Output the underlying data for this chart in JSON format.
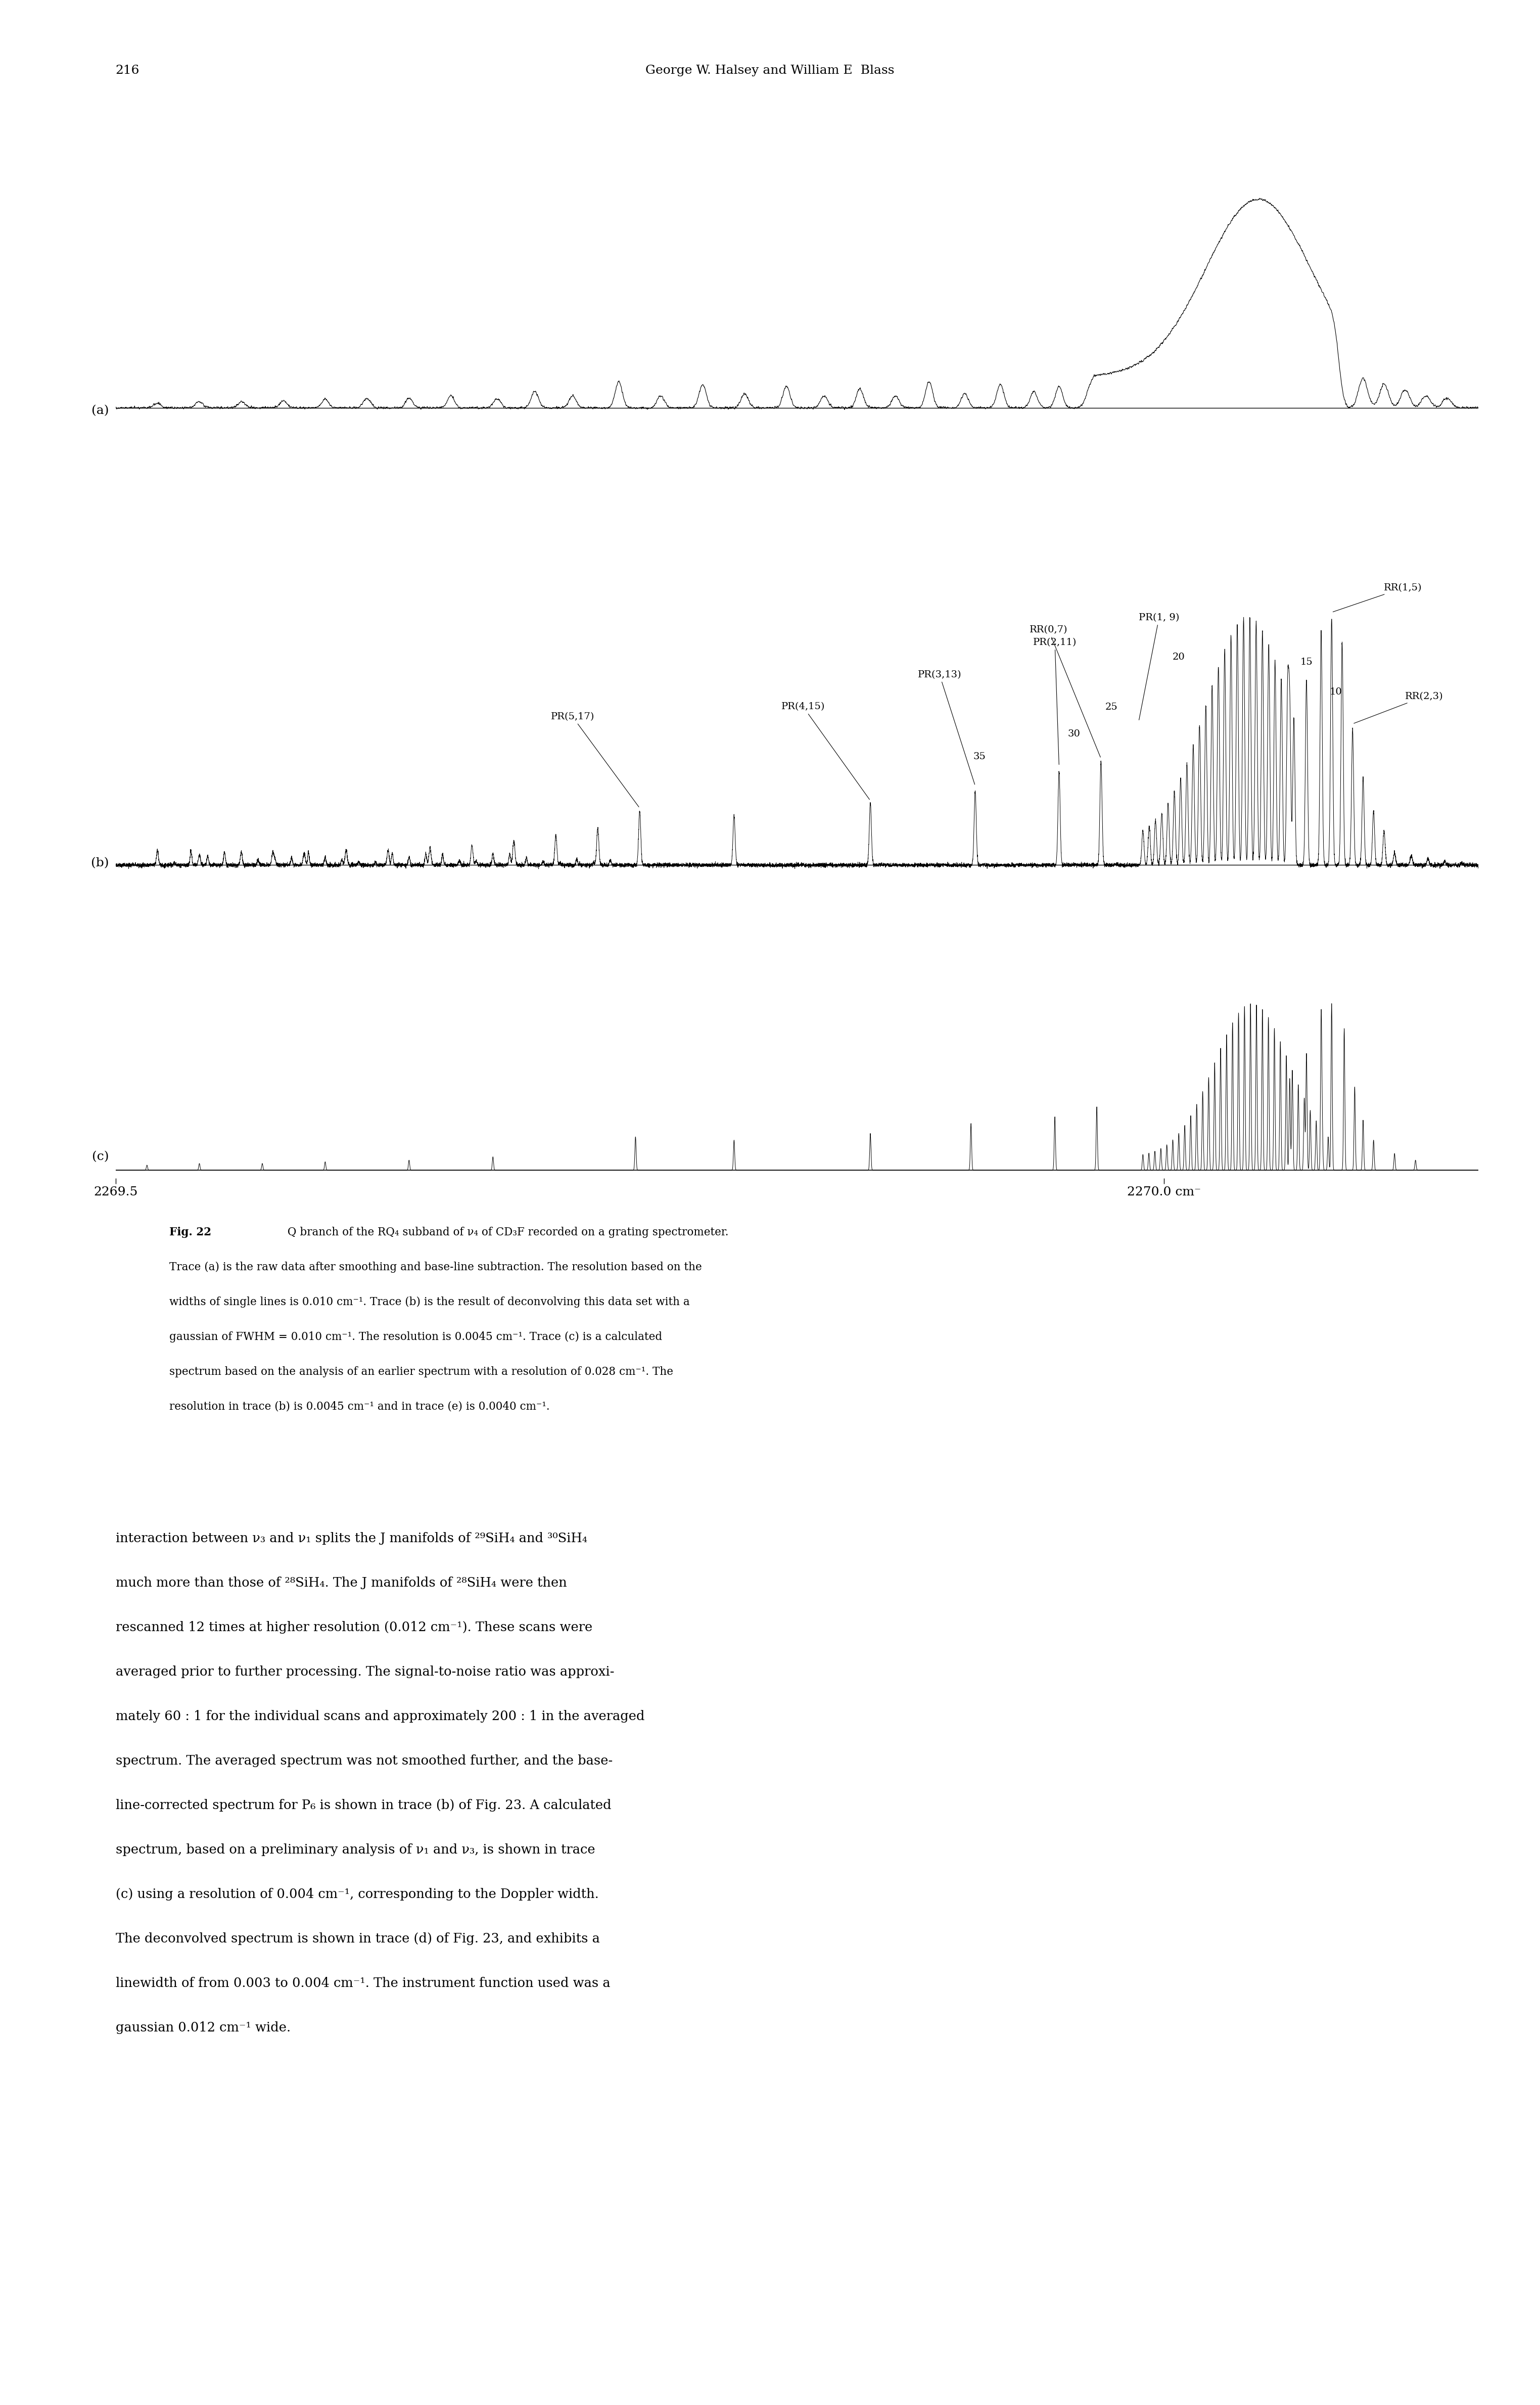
{
  "page_number": "216",
  "header_text": "George W. Halsey and William E  Blass",
  "trace_labels": [
    "(a)",
    "(b)",
    "(c)"
  ],
  "x_min": 2269.5,
  "x_max": 2270.15,
  "x_tick_positions": [
    2269.5,
    2270.0
  ],
  "x_tick_labels": [
    "2269.5",
    "2270.0 cm⁻"
  ],
  "caption_bold": "Fig. 22",
  "caption_text": "  Q branch of the RQ₄ subband of ν₄ of CD₃F recorded on a grating spectrometer. Trace (a) is the raw data after smoothing and base-line subtraction. The resolution based on the widths of single lines is 0.010 cm⁻¹. Trace (b) is the result of deconvolving this data set with a gaussian of FWHM = 0.010 cm⁻¹. The resolution is 0.0045 cm⁻¹. Trace (c) is a calculated spectrum based on the analysis of an earlier spectrum with a resolution of 0.028 cm⁻¹. The resolution in trace (b) is 0.0045 cm⁻¹ and in trace (e) is 0.0040 cm⁻¹.",
  "body_lines": [
    "interaction between ν₃ and ν₁ splits the J manifolds of ²⁹SiH₄ and ³⁰SiH₄",
    "much more than those of ²⁸SiH₄. The J manifolds of ²⁸SiH₄ were then",
    "rescanned 12 times at higher resolution (0.012 cm⁻¹). These scans were",
    "averaged prior to further processing. The signal-to-noise ratio was approxi-",
    "mately 60 : 1 for the individual scans and approximately 200 : 1 in the averaged",
    "spectrum. The averaged spectrum was not smoothed further, and the base-",
    "line-corrected spectrum for P₆ is shown in trace (b) of Fig. 23. A calculated",
    "spectrum, based on a preliminary analysis of ν₁ and ν₃, is shown in trace",
    "(c) using a resolution of 0.004 cm⁻¹, corresponding to the Doppler width.",
    "The deconvolved spectrum is shown in trace (d) of Fig. 23, and exhibits a",
    "linewidth of from 0.003 to 0.004 cm⁻¹. The instrument function used was a",
    "gaussian 0.012 cm⁻¹ wide."
  ]
}
